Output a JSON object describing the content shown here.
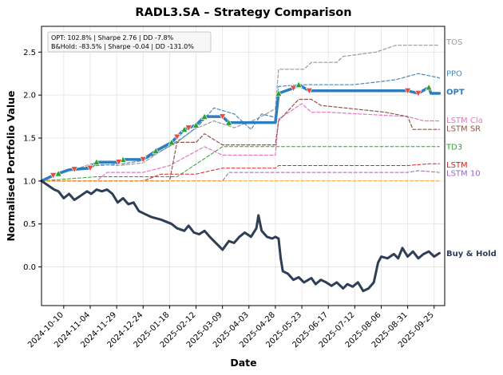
{
  "chart_data": {
    "type": "line",
    "title": "RADL3.SA – Strategy Comparison",
    "xlabel": "Date",
    "ylabel": "Normalised Portfolio Value",
    "xlim": [
      "2024-09-19",
      "2025-10-05"
    ],
    "ylim": [
      -0.45,
      2.8
    ],
    "x_ticks": [
      "2024-10-10",
      "2024-11-04",
      "2024-11-29",
      "2024-12-24",
      "2025-01-18",
      "2025-02-12",
      "2025-03-09",
      "2025-04-03",
      "2025-04-28",
      "2025-05-23",
      "2025-06-17",
      "2025-07-12",
      "2025-08-06",
      "2025-08-31",
      "2025-09-25"
    ],
    "y_ticks": [
      0.0,
      0.5,
      1.0,
      1.5,
      2.0,
      2.5
    ],
    "grid": true,
    "annotation": {
      "line1": "OPT: 102.8% | Sharpe 2.76 | DD -7.8%",
      "line2": "B&Hold: -83.5% | Sharpe -0.04 | DD -131.0%"
    },
    "series": [
      {
        "name": "TOS",
        "color": "#999999",
        "style": "dashed",
        "width": 1.2,
        "points": [
          [
            "2024-09-19",
            1.0
          ],
          [
            "2024-10-01",
            1.08
          ],
          [
            "2024-10-20",
            1.13
          ],
          [
            "2024-11-05",
            1.2
          ],
          [
            "2024-12-01",
            1.18
          ],
          [
            "2024-12-24",
            1.21
          ],
          [
            "2025-01-10",
            1.35
          ],
          [
            "2025-01-25",
            1.45
          ],
          [
            "2025-02-10",
            1.6
          ],
          [
            "2025-03-01",
            1.7
          ],
          [
            "2025-03-20",
            1.62
          ],
          [
            "2025-04-10",
            1.72
          ],
          [
            "2025-04-28",
            1.84
          ],
          [
            "2025-05-01",
            2.3
          ],
          [
            "2025-05-25",
            2.3
          ],
          [
            "2025-06-01",
            2.38
          ],
          [
            "2025-06-25",
            2.38
          ],
          [
            "2025-07-01",
            2.45
          ],
          [
            "2025-08-01",
            2.5
          ],
          [
            "2025-08-20",
            2.58
          ],
          [
            "2025-09-30",
            2.58
          ]
        ]
      },
      {
        "name": "PPO",
        "color": "#4a88b8",
        "style": "dashed",
        "width": 1.2,
        "points": [
          [
            "2024-09-19",
            1.0
          ],
          [
            "2024-10-05",
            1.1
          ],
          [
            "2024-10-25",
            1.15
          ],
          [
            "2024-11-10",
            1.18
          ],
          [
            "2024-12-05",
            1.2
          ],
          [
            "2024-12-24",
            1.24
          ],
          [
            "2025-01-10",
            1.35
          ],
          [
            "2025-01-30",
            1.5
          ],
          [
            "2025-02-15",
            1.65
          ],
          [
            "2025-03-01",
            1.85
          ],
          [
            "2025-03-20",
            1.78
          ],
          [
            "2025-04-05",
            1.6
          ],
          [
            "2025-04-15",
            1.78
          ],
          [
            "2025-04-28",
            1.74
          ],
          [
            "2025-05-01",
            2.1
          ],
          [
            "2025-05-20",
            2.12
          ],
          [
            "2025-06-10",
            2.12
          ],
          [
            "2025-07-10",
            2.12
          ],
          [
            "2025-08-01",
            2.15
          ],
          [
            "2025-08-20",
            2.18
          ],
          [
            "2025-09-10",
            2.25
          ],
          [
            "2025-09-30",
            2.2
          ]
        ]
      },
      {
        "name": "OPT",
        "color": "#2e7ebf",
        "style": "solid",
        "width": 3.5,
        "points": [
          [
            "2024-09-19",
            1.0
          ],
          [
            "2024-10-01",
            1.07
          ],
          [
            "2024-10-15",
            1.13
          ],
          [
            "2024-11-04",
            1.15
          ],
          [
            "2024-11-10",
            1.22
          ],
          [
            "2024-12-01",
            1.22
          ],
          [
            "2024-12-05",
            1.25
          ],
          [
            "2024-12-24",
            1.25
          ],
          [
            "2025-01-05",
            1.35
          ],
          [
            "2025-01-20",
            1.45
          ],
          [
            "2025-02-01",
            1.6
          ],
          [
            "2025-02-12",
            1.65
          ],
          [
            "2025-02-20",
            1.75
          ],
          [
            "2025-03-09",
            1.75
          ],
          [
            "2025-03-15",
            1.68
          ],
          [
            "2025-04-28",
            1.68
          ],
          [
            "2025-05-01",
            2.02
          ],
          [
            "2025-05-15",
            2.08
          ],
          [
            "2025-05-20",
            2.12
          ],
          [
            "2025-05-30",
            2.05
          ],
          [
            "2025-06-17",
            2.05
          ],
          [
            "2025-08-31",
            2.05
          ],
          [
            "2025-09-10",
            2.02
          ],
          [
            "2025-09-20",
            2.09
          ],
          [
            "2025-09-22",
            2.02
          ],
          [
            "2025-09-30",
            2.02
          ]
        ]
      },
      {
        "name": "LSTM Cla",
        "color": "#e377c2",
        "style": "dashed",
        "width": 1.2,
        "points": [
          [
            "2024-09-19",
            1.0
          ],
          [
            "2024-11-10",
            1.0
          ],
          [
            "2024-11-20",
            1.1
          ],
          [
            "2024-12-24",
            1.1
          ],
          [
            "2025-01-18",
            1.18
          ],
          [
            "2025-02-20",
            1.4
          ],
          [
            "2025-03-09",
            1.3
          ],
          [
            "2025-04-28",
            1.3
          ],
          [
            "2025-05-01",
            1.72
          ],
          [
            "2025-05-23",
            1.9
          ],
          [
            "2025-06-01",
            1.8
          ],
          [
            "2025-06-17",
            1.8
          ],
          [
            "2025-08-31",
            1.75
          ],
          [
            "2025-09-15",
            1.7
          ],
          [
            "2025-09-30",
            1.7
          ]
        ]
      },
      {
        "name": "LSTM SR",
        "color": "#8c564b",
        "style": "dashed",
        "width": 1.2,
        "points": [
          [
            "2024-09-19",
            1.0
          ],
          [
            "2024-12-24",
            1.0
          ],
          [
            "2025-01-18",
            1.0
          ],
          [
            "2025-01-25",
            1.45
          ],
          [
            "2025-02-12",
            1.45
          ],
          [
            "2025-02-20",
            1.55
          ],
          [
            "2025-03-09",
            1.42
          ],
          [
            "2025-04-28",
            1.42
          ],
          [
            "2025-05-01",
            1.7
          ],
          [
            "2025-05-20",
            1.95
          ],
          [
            "2025-06-01",
            1.95
          ],
          [
            "2025-06-10",
            1.88
          ],
          [
            "2025-08-10",
            1.8
          ],
          [
            "2025-08-31",
            1.75
          ],
          [
            "2025-09-05",
            1.6
          ],
          [
            "2025-09-30",
            1.6
          ]
        ]
      },
      {
        "name": "TD3",
        "color": "#2ca02c",
        "style": "dashed",
        "width": 1.0,
        "points": [
          [
            "2024-09-19",
            1.0
          ],
          [
            "2024-11-10",
            1.05
          ],
          [
            "2025-01-18",
            1.05
          ],
          [
            "2025-01-25",
            1.05
          ],
          [
            "2025-03-09",
            1.4
          ],
          [
            "2025-09-30",
            1.4
          ]
        ]
      },
      {
        "name": "LSTM",
        "color": "#d62728",
        "style": "dashed",
        "width": 1.0,
        "points": [
          [
            "2024-09-19",
            1.0
          ],
          [
            "2024-12-24",
            1.0
          ],
          [
            "2025-01-10",
            1.08
          ],
          [
            "2025-02-12",
            1.08
          ],
          [
            "2025-03-09",
            1.15
          ],
          [
            "2025-04-28",
            1.15
          ],
          [
            "2025-05-01",
            1.18
          ],
          [
            "2025-08-31",
            1.18
          ],
          [
            "2025-09-20",
            1.2
          ],
          [
            "2025-09-30",
            1.2
          ]
        ]
      },
      {
        "name": "LSTM 10",
        "color": "#9467bd",
        "style": "dashed",
        "width": 1.0,
        "points": [
          [
            "2024-09-19",
            1.0
          ],
          [
            "2025-03-09",
            1.0
          ],
          [
            "2025-03-15",
            1.1
          ],
          [
            "2025-08-31",
            1.1
          ],
          [
            "2025-09-10",
            1.12
          ],
          [
            "2025-09-30",
            1.1
          ]
        ]
      },
      {
        "name": "",
        "color": "#ff9f1a",
        "style": "dashed",
        "width": 1.0,
        "points": [
          [
            "2024-09-19",
            1.0
          ],
          [
            "2025-09-30",
            1.0
          ]
        ]
      },
      {
        "name": "Buy & Hold",
        "color": "#2e3e55",
        "style": "solid",
        "width": 3.0,
        "points": [
          [
            "2024-09-19",
            1.0
          ],
          [
            "2024-09-25",
            0.95
          ],
          [
            "2024-10-01",
            0.9
          ],
          [
            "2024-10-05",
            0.88
          ],
          [
            "2024-10-10",
            0.8
          ],
          [
            "2024-10-15",
            0.85
          ],
          [
            "2024-10-20",
            0.78
          ],
          [
            "2024-10-25",
            0.82
          ],
          [
            "2024-11-01",
            0.88
          ],
          [
            "2024-11-05",
            0.85
          ],
          [
            "2024-11-10",
            0.9
          ],
          [
            "2024-11-15",
            0.88
          ],
          [
            "2024-11-20",
            0.9
          ],
          [
            "2024-11-25",
            0.85
          ],
          [
            "2024-11-30",
            0.75
          ],
          [
            "2024-12-05",
            0.8
          ],
          [
            "2024-12-10",
            0.73
          ],
          [
            "2024-12-15",
            0.75
          ],
          [
            "2024-12-20",
            0.65
          ],
          [
            "2024-12-25",
            0.62
          ],
          [
            "2025-01-01",
            0.58
          ],
          [
            "2025-01-10",
            0.55
          ],
          [
            "2025-01-20",
            0.5
          ],
          [
            "2025-01-25",
            0.45
          ],
          [
            "2025-02-01",
            0.42
          ],
          [
            "2025-02-05",
            0.48
          ],
          [
            "2025-02-10",
            0.4
          ],
          [
            "2025-02-15",
            0.38
          ],
          [
            "2025-02-20",
            0.42
          ],
          [
            "2025-02-25",
            0.35
          ],
          [
            "2025-03-01",
            0.3
          ],
          [
            "2025-03-05",
            0.25
          ],
          [
            "2025-03-09",
            0.2
          ],
          [
            "2025-03-15",
            0.3
          ],
          [
            "2025-03-20",
            0.28
          ],
          [
            "2025-03-25",
            0.35
          ],
          [
            "2025-03-30",
            0.4
          ],
          [
            "2025-04-05",
            0.35
          ],
          [
            "2025-04-10",
            0.45
          ],
          [
            "2025-04-12",
            0.6
          ],
          [
            "2025-04-15",
            0.42
          ],
          [
            "2025-04-20",
            0.35
          ],
          [
            "2025-04-25",
            0.33
          ],
          [
            "2025-04-28",
            0.35
          ],
          [
            "2025-05-01",
            0.33
          ],
          [
            "2025-05-03",
            0.1
          ],
          [
            "2025-05-05",
            -0.05
          ],
          [
            "2025-05-10",
            -0.08
          ],
          [
            "2025-05-15",
            -0.15
          ],
          [
            "2025-05-20",
            -0.12
          ],
          [
            "2025-05-25",
            -0.18
          ],
          [
            "2025-06-01",
            -0.13
          ],
          [
            "2025-06-05",
            -0.2
          ],
          [
            "2025-06-10",
            -0.15
          ],
          [
            "2025-06-15",
            -0.18
          ],
          [
            "2025-06-20",
            -0.22
          ],
          [
            "2025-06-25",
            -0.18
          ],
          [
            "2025-07-01",
            -0.25
          ],
          [
            "2025-07-05",
            -0.2
          ],
          [
            "2025-07-10",
            -0.23
          ],
          [
            "2025-07-15",
            -0.18
          ],
          [
            "2025-07-20",
            -0.28
          ],
          [
            "2025-07-25",
            -0.25
          ],
          [
            "2025-07-30",
            -0.18
          ],
          [
            "2025-08-03",
            0.05
          ],
          [
            "2025-08-06",
            0.12
          ],
          [
            "2025-08-12",
            0.1
          ],
          [
            "2025-08-18",
            0.15
          ],
          [
            "2025-08-22",
            0.1
          ],
          [
            "2025-08-26",
            0.22
          ],
          [
            "2025-08-31",
            0.12
          ],
          [
            "2025-09-05",
            0.18
          ],
          [
            "2025-09-10",
            0.1
          ],
          [
            "2025-09-15",
            0.15
          ],
          [
            "2025-09-20",
            0.18
          ],
          [
            "2025-09-25",
            0.12
          ],
          [
            "2025-09-30",
            0.16
          ]
        ]
      }
    ],
    "buy_markers": [
      "2024-10-05",
      "2024-11-10",
      "2024-12-05",
      "2025-01-05",
      "2025-01-20",
      "2025-02-01",
      "2025-02-12",
      "2025-02-20",
      "2025-03-15",
      "2025-05-01",
      "2025-05-20",
      "2025-09-20"
    ],
    "sell_markers": [
      "2024-09-30",
      "2024-10-20",
      "2024-11-04",
      "2024-12-01",
      "2024-12-24",
      "2025-01-25",
      "2025-02-05",
      "2025-03-09",
      "2025-05-15",
      "2025-05-30",
      "2025-08-31",
      "2025-09-10"
    ]
  }
}
